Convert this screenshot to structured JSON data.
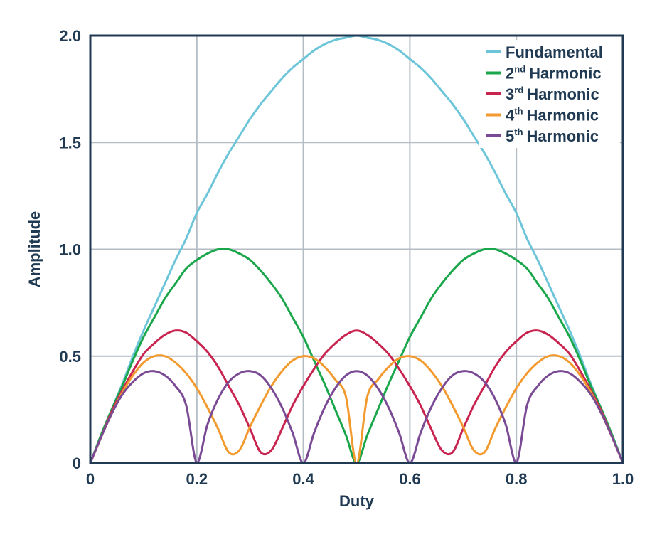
{
  "chart_data": {
    "type": "line",
    "title": "",
    "xlabel": "Duty",
    "ylabel": "Amplitude",
    "xlim": [
      0,
      1.0
    ],
    "ylim": [
      0,
      2.0
    ],
    "grid": true,
    "legend_position": "top-right",
    "x_ticks": [
      {
        "value": 0,
        "label": "0"
      },
      {
        "value": 0.2,
        "label": "0.2"
      },
      {
        "value": 0.4,
        "label": "0.4"
      },
      {
        "value": 0.6,
        "label": "0.6"
      },
      {
        "value": 0.8,
        "label": "0.8"
      },
      {
        "value": 1.0,
        "label": "1.0"
      }
    ],
    "y_ticks": [
      {
        "value": 0,
        "label": "0"
      },
      {
        "value": 0.5,
        "label": "0.5"
      },
      {
        "value": 1.0,
        "label": "1.0"
      },
      {
        "value": 1.5,
        "label": "1.5"
      },
      {
        "value": 2.0,
        "label": "2.0"
      }
    ],
    "colors": {
      "axis": "#1f3a52",
      "tick_text": "#1f3a52",
      "grid": "#b4bcc4"
    },
    "x": [
      0,
      0.02,
      0.04,
      0.06,
      0.08,
      0.1,
      0.12,
      0.14,
      0.16,
      0.18,
      0.2,
      0.22,
      0.24,
      0.26,
      0.28,
      0.3,
      0.32,
      0.34,
      0.36,
      0.38,
      0.4,
      0.42,
      0.44,
      0.46,
      0.48,
      0.5,
      0.52,
      0.54,
      0.56,
      0.58,
      0.6,
      0.62,
      0.64,
      0.66,
      0.68,
      0.7,
      0.72,
      0.74,
      0.76,
      0.78,
      0.8,
      0.82,
      0.84,
      0.86,
      0.88,
      0.9,
      0.92,
      0.94,
      0.96,
      0.98,
      1.0
    ],
    "series": [
      {
        "name": "Fundamental",
        "superscript": "",
        "color": "#6cc5d8",
        "values": [
          0,
          0.13,
          0.25,
          0.37,
          0.5,
          0.62,
          0.73,
          0.84,
          0.95,
          1.05,
          1.17,
          1.26,
          1.36,
          1.45,
          1.53,
          1.61,
          1.68,
          1.74,
          1.8,
          1.85,
          1.89,
          1.93,
          1.96,
          1.98,
          1.99,
          2.0,
          1.99,
          1.98,
          1.96,
          1.93,
          1.89,
          1.85,
          1.8,
          1.74,
          1.68,
          1.61,
          1.53,
          1.45,
          1.36,
          1.26,
          1.17,
          1.05,
          0.95,
          0.84,
          0.73,
          0.62,
          0.5,
          0.37,
          0.25,
          0.13,
          0
        ]
      },
      {
        "name": "Harmonic",
        "superscript": "nd",
        "number": "2",
        "color": "#1aa64a",
        "values": [
          0,
          0.13,
          0.25,
          0.36,
          0.48,
          0.59,
          0.68,
          0.77,
          0.84,
          0.91,
          0.95,
          0.98,
          1.0,
          1.0,
          0.98,
          0.95,
          0.9,
          0.84,
          0.77,
          0.68,
          0.59,
          0.48,
          0.37,
          0.25,
          0.13,
          0,
          0.13,
          0.25,
          0.37,
          0.48,
          0.59,
          0.68,
          0.77,
          0.84,
          0.9,
          0.95,
          0.98,
          1.0,
          1.0,
          0.98,
          0.95,
          0.91,
          0.84,
          0.77,
          0.68,
          0.59,
          0.48,
          0.36,
          0.25,
          0.13,
          0
        ]
      },
      {
        "name": "Harmonic",
        "superscript": "rd",
        "number": "3",
        "color": "#c8244f",
        "values": [
          0,
          0.12,
          0.24,
          0.34,
          0.43,
          0.51,
          0.56,
          0.6,
          0.62,
          0.61,
          0.57,
          0.52,
          0.45,
          0.36,
          0.27,
          0.16,
          0.05,
          0.06,
          0.16,
          0.27,
          0.36,
          0.44,
          0.51,
          0.56,
          0.6,
          0.62,
          0.6,
          0.56,
          0.51,
          0.44,
          0.36,
          0.27,
          0.16,
          0.06,
          0.05,
          0.16,
          0.27,
          0.36,
          0.45,
          0.52,
          0.57,
          0.61,
          0.62,
          0.6,
          0.56,
          0.51,
          0.43,
          0.34,
          0.24,
          0.12,
          0
        ]
      },
      {
        "name": "Harmonic",
        "superscript": "th",
        "number": "4",
        "color": "#f39a2f",
        "values": [
          0,
          0.12,
          0.23,
          0.33,
          0.41,
          0.47,
          0.5,
          0.5,
          0.47,
          0.42,
          0.35,
          0.26,
          0.16,
          0.05,
          0.06,
          0.17,
          0.27,
          0.36,
          0.43,
          0.48,
          0.5,
          0.49,
          0.45,
          0.39,
          0.31,
          0.0,
          0.31,
          0.39,
          0.45,
          0.49,
          0.5,
          0.48,
          0.43,
          0.36,
          0.27,
          0.17,
          0.06,
          0.05,
          0.16,
          0.26,
          0.35,
          0.42,
          0.47,
          0.5,
          0.5,
          0.47,
          0.41,
          0.33,
          0.23,
          0.12,
          0
        ]
      },
      {
        "name": "Harmonic",
        "superscript": "th",
        "number": "5",
        "color": "#7a4a94",
        "values": [
          0,
          0.12,
          0.23,
          0.32,
          0.38,
          0.42,
          0.43,
          0.41,
          0.36,
          0.27,
          0.0,
          0.18,
          0.3,
          0.38,
          0.42,
          0.43,
          0.41,
          0.35,
          0.26,
          0.14,
          0.0,
          0.14,
          0.26,
          0.35,
          0.41,
          0.43,
          0.41,
          0.35,
          0.26,
          0.14,
          0.0,
          0.14,
          0.26,
          0.35,
          0.41,
          0.43,
          0.42,
          0.38,
          0.3,
          0.18,
          0.0,
          0.27,
          0.36,
          0.41,
          0.43,
          0.42,
          0.38,
          0.32,
          0.23,
          0.12,
          0
        ]
      }
    ]
  }
}
